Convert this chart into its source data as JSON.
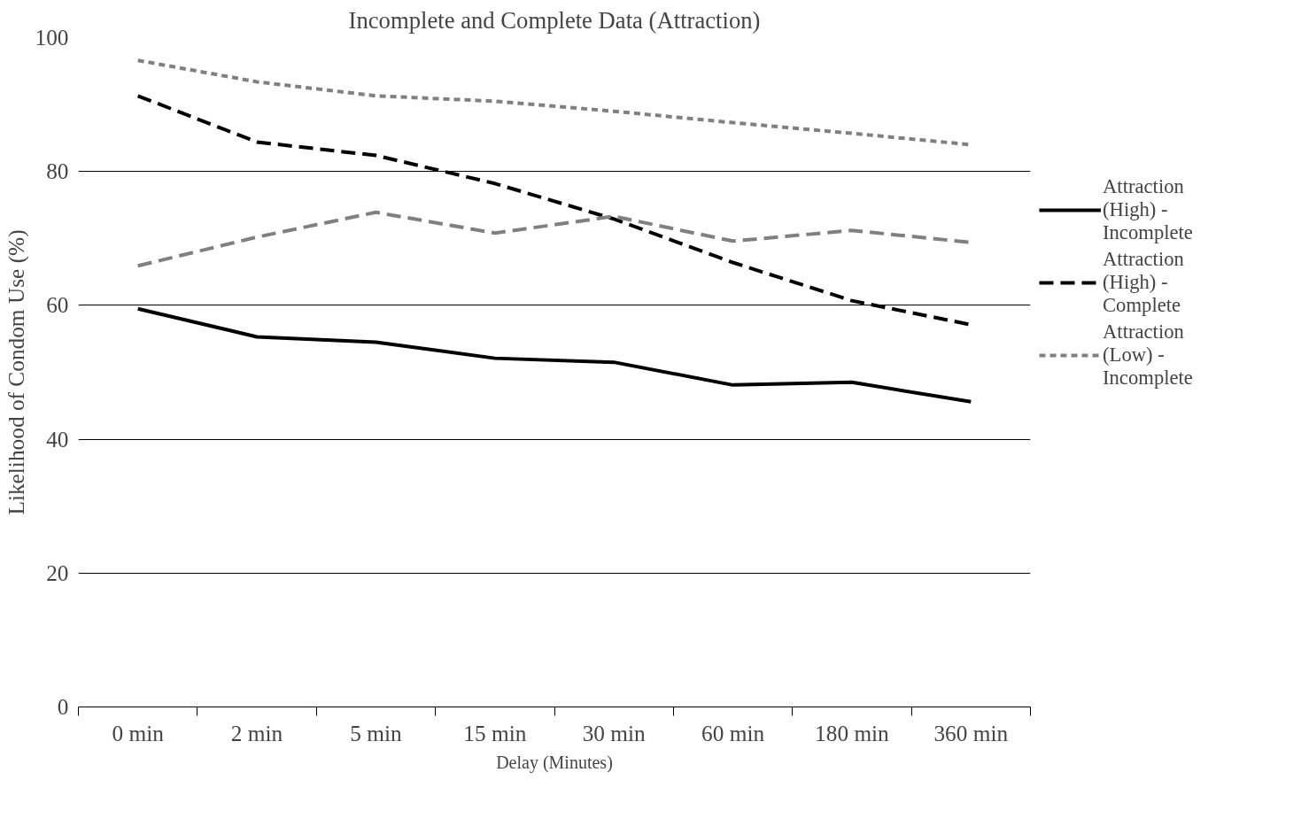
{
  "chart_data": {
    "type": "line",
    "title": "Incomplete and Complete Data (Attraction)",
    "xlabel": "Delay (Minutes)",
    "ylabel": "Likelihood of Condom Use (%)",
    "categories": [
      "0 min",
      "2 min",
      "5 min",
      "15 min",
      "30 min",
      "60 min",
      "180 min",
      "360 min"
    ],
    "series": [
      {
        "name": "Attraction (High) - Incomplete",
        "color": "#000000",
        "line_style": "solid",
        "values": [
          59.5,
          55.3,
          54.5,
          52.1,
          51.5,
          48.1,
          48.5,
          45.6
        ]
      },
      {
        "name": "Attraction (High) - Complete",
        "color": "#000000",
        "line_style": "dashed",
        "values": [
          91.3,
          84.4,
          82.4,
          78.2,
          72.9,
          66.4,
          60.7,
          57.1
        ]
      },
      {
        "name": "Attraction (Low) - Incomplete",
        "color": "#808080",
        "line_style": "dotted",
        "values": [
          96.6,
          93.4,
          91.3,
          90.5,
          89.0,
          87.3,
          85.7,
          84.0
        ]
      },
      {
        "color": "#808080",
        "line_style": "dashed",
        "values": [
          65.9,
          70.2,
          73.9,
          70.8,
          73.3,
          69.6,
          71.2,
          69.4
        ]
      }
    ],
    "ylim": [
      0,
      100
    ],
    "yticks": [
      0,
      20,
      40,
      60,
      80,
      100
    ],
    "grid": "y",
    "legend": "right",
    "marker": "none"
  }
}
